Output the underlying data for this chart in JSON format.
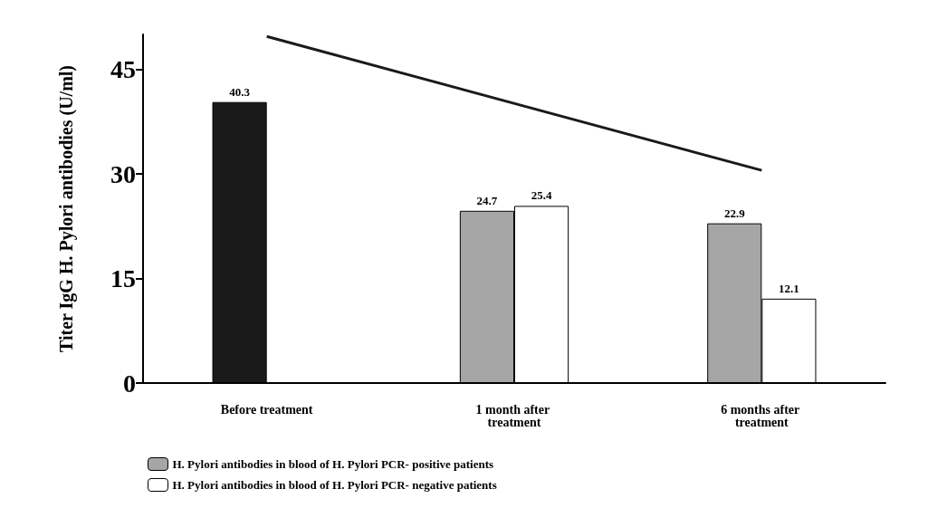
{
  "chart_data": {
    "type": "bar",
    "ylabel": "Titer IgG H. Pylori antibodies (U/ml)",
    "categories": [
      "Before treatment",
      "1 month after treatment",
      "6 months after treatment"
    ],
    "series": [
      {
        "name": "H. Pylori antibodies in blood of H. Pylori PCR- positive patients",
        "color": "#a6a6a6",
        "colors": [
          "#1a1a1a",
          "#a6a6a6",
          "#a6a6a6"
        ],
        "values": [
          40.3,
          24.7,
          22.9
        ],
        "value_labels": [
          "40.3",
          "24.7",
          "22.9"
        ]
      },
      {
        "name": "H. Pylori antibodies in blood of H. Pylori PCR- negative patients",
        "color": "#ffffff",
        "values": [
          null,
          25.4,
          12.1
        ],
        "value_labels": [
          null,
          "25.4",
          "12.1"
        ]
      },
      {
        "type": "line",
        "color": "#1a1a1a",
        "x": [
          "Before treatment",
          "6 months after treatment"
        ],
        "values": [
          49.7,
          30.5
        ]
      }
    ],
    "ylim": [
      0,
      50
    ],
    "yticks": [
      0,
      15,
      30,
      45
    ],
    "grid": false,
    "legend": "bottom left",
    "marker": "none",
    "line_style": "solid"
  }
}
